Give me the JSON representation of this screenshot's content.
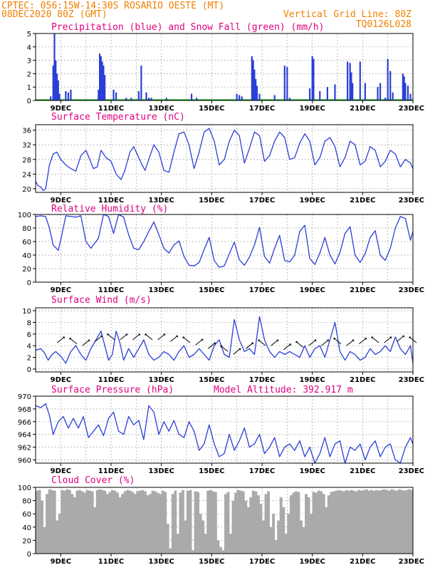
{
  "header": {
    "line1": "CPTEC:  056:15W-14:30S  ROSARIO OESTE (MT)",
    "line2_left": "08DEC2020 80Z (GMT)",
    "line2_right": "Vertical Grid Line: 80Z",
    "line3_right": "TQ0126L028"
  },
  "colors": {
    "header": "#f08000",
    "title": "#e0007f",
    "line": "#2a3fd6",
    "snow": "#00a000",
    "cloud": "#aaaaaa",
    "grid": "#888888"
  },
  "x_axis_labels": [
    "9DEC",
    "11DEC",
    "13DEC",
    "15DEC",
    "17DEC",
    "19DEC",
    "21DEC",
    "23DEC"
  ],
  "chart_data": [
    {
      "type": "bar",
      "title": "Precipitation (blue) and Snow Fall (green) (mm/h)",
      "ylim": [
        0,
        5
      ],
      "yticks": [
        0,
        1,
        2,
        3,
        4,
        5
      ],
      "x_days": [
        8.6,
        8.7,
        8.75,
        8.8,
        8.85,
        8.9,
        8.95,
        9.2,
        9.3,
        9.4,
        10.5,
        10.55,
        10.6,
        10.65,
        10.7,
        10.75,
        11.1,
        11.2,
        11.6,
        11.8,
        12.1,
        12.2,
        12.4,
        12.5,
        12.6,
        13.2,
        14.2,
        14.4,
        16.0,
        16.1,
        16.2,
        16.6,
        16.65,
        16.7,
        16.75,
        16.8,
        16.9,
        17.5,
        17.9,
        18.0,
        18.1,
        18.9,
        19.0,
        19.05,
        19.3,
        19.6,
        19.9,
        20.4,
        20.5,
        20.55,
        20.6,
        20.9,
        21.1,
        21.6,
        21.7,
        21.9,
        22.0,
        22.1,
        22.2,
        22.6,
        22.65,
        22.7,
        22.8,
        22.9
      ],
      "values": [
        0.3,
        2.6,
        5.0,
        3.0,
        2.0,
        1.5,
        0.5,
        0.7,
        0.6,
        0.8,
        0.8,
        3.5,
        3.3,
        2.9,
        2.6,
        1.9,
        0.8,
        0.6,
        0.2,
        0.2,
        0.7,
        2.6,
        0.6,
        0.2,
        0.2,
        0.2,
        0.5,
        0.2,
        0.5,
        0.4,
        0.3,
        3.3,
        3.0,
        2.3,
        1.6,
        1.1,
        0.5,
        0.4,
        2.6,
        2.5,
        0.2,
        0.9,
        3.3,
        3.1,
        0.7,
        1.0,
        1.2,
        2.9,
        2.8,
        2.1,
        1.3,
        2.9,
        1.3,
        1.0,
        1.3,
        0.2,
        3.1,
        2.2,
        0.6,
        2.0,
        1.8,
        1.3,
        1.1,
        0.5
      ]
    },
    {
      "type": "line",
      "title": "Surface Temperature (nC)",
      "ylim": [
        19,
        37.5
      ],
      "yticks": [
        20,
        24,
        28,
        32,
        36
      ],
      "x": [
        8.0,
        8.1,
        8.2,
        8.3,
        8.4,
        8.55,
        8.7,
        8.85,
        9.0,
        9.2,
        9.4,
        9.6,
        9.8,
        10.0,
        10.15,
        10.3,
        10.45,
        10.6,
        10.8,
        11.0,
        11.2,
        11.4,
        11.55,
        11.75,
        11.9,
        12.0,
        12.2,
        12.35,
        12.5,
        12.7,
        12.9,
        13.1,
        13.3,
        13.5,
        13.7,
        13.9,
        14.1,
        14.3,
        14.5,
        14.7,
        14.9,
        15.1,
        15.3,
        15.5,
        15.7,
        15.9,
        16.1,
        16.3,
        16.5,
        16.7,
        16.9,
        17.1,
        17.3,
        17.5,
        17.7,
        17.9,
        18.1,
        18.3,
        18.5,
        18.7,
        18.9,
        19.1,
        19.3,
        19.5,
        19.7,
        19.9,
        20.1,
        20.3,
        20.5,
        20.7,
        20.9,
        21.1,
        21.3,
        21.5,
        21.7,
        21.9,
        22.1,
        22.3,
        22.5,
        22.7,
        22.9,
        23.0
      ],
      "values": [
        22.0,
        20.8,
        20.5,
        19.5,
        20.0,
        26.5,
        29.5,
        30.0,
        28.0,
        26.5,
        25.5,
        24.8,
        29.0,
        30.5,
        28.0,
        25.5,
        26.0,
        30.5,
        28.5,
        27.5,
        24.0,
        22.5,
        25.0,
        30.0,
        31.5,
        30.0,
        27.0,
        25.0,
        28.0,
        32.0,
        30.0,
        25.0,
        24.5,
        30.0,
        35.0,
        35.5,
        32.0,
        25.5,
        30.0,
        35.5,
        36.5,
        33.0,
        26.5,
        28.0,
        33.0,
        36.0,
        34.5,
        27.0,
        31.0,
        35.5,
        34.5,
        27.5,
        29.0,
        33.0,
        35.5,
        34.0,
        28.0,
        28.5,
        32.5,
        35.0,
        33.0,
        26.5,
        28.5,
        33.0,
        34.0,
        31.5,
        26.0,
        28.5,
        33.0,
        32.0,
        26.5,
        27.5,
        31.5,
        30.5,
        26.0,
        27.5,
        30.5,
        29.5,
        26.0,
        28.0,
        27.0,
        25.5
      ]
    },
    {
      "type": "line",
      "title": "Relative Humidity (%)",
      "ylim": [
        0,
        100
      ],
      "yticks": [
        0,
        20,
        40,
        60,
        80,
        100
      ],
      "x": [
        8.0,
        8.2,
        8.4,
        8.55,
        8.7,
        8.9,
        9.0,
        9.2,
        9.4,
        9.6,
        9.8,
        10.0,
        10.2,
        10.5,
        10.7,
        10.9,
        11.1,
        11.3,
        11.5,
        11.7,
        11.9,
        12.1,
        12.3,
        12.5,
        12.7,
        12.9,
        13.1,
        13.3,
        13.5,
        13.7,
        13.9,
        14.1,
        14.3,
        14.5,
        14.7,
        14.9,
        15.1,
        15.3,
        15.5,
        15.7,
        15.9,
        16.1,
        16.3,
        16.5,
        16.7,
        16.9,
        17.1,
        17.3,
        17.5,
        17.7,
        17.9,
        18.1,
        18.3,
        18.5,
        18.7,
        18.9,
        19.1,
        19.3,
        19.5,
        19.7,
        19.9,
        20.1,
        20.3,
        20.5,
        20.7,
        20.9,
        21.1,
        21.3,
        21.5,
        21.7,
        21.9,
        22.1,
        22.3,
        22.5,
        22.7,
        22.9,
        23.0
      ],
      "values": [
        97,
        98,
        97,
        80,
        55,
        47,
        62,
        98,
        97,
        96,
        98,
        60,
        50,
        65,
        100,
        97,
        72,
        100,
        96,
        70,
        50,
        48,
        60,
        75,
        89,
        70,
        50,
        43,
        55,
        61,
        38,
        25,
        24,
        29,
        48,
        66,
        32,
        22,
        24,
        42,
        59,
        33,
        25,
        37,
        55,
        81,
        38,
        28,
        50,
        69,
        32,
        30,
        40,
        75,
        84,
        35,
        26,
        43,
        66,
        40,
        27,
        44,
        72,
        82,
        40,
        29,
        42,
        66,
        76,
        40,
        32,
        50,
        80,
        97,
        94,
        62,
        75
      ]
    },
    {
      "type": "line",
      "title": "Surface Wind (m/s)",
      "ylim": [
        -0.5,
        10.5
      ],
      "yticks": [
        0,
        2,
        4,
        6,
        8,
        10
      ],
      "x": [
        8.0,
        8.2,
        8.35,
        8.5,
        8.65,
        8.8,
        9.0,
        9.2,
        9.4,
        9.6,
        9.8,
        10.0,
        10.2,
        10.4,
        10.6,
        10.75,
        10.9,
        11.05,
        11.2,
        11.35,
        11.5,
        11.7,
        11.9,
        12.1,
        12.3,
        12.5,
        12.7,
        12.9,
        13.1,
        13.3,
        13.5,
        13.7,
        13.9,
        14.1,
        14.3,
        14.5,
        14.7,
        14.9,
        15.1,
        15.3,
        15.5,
        15.7,
        15.9,
        16.1,
        16.3,
        16.5,
        16.7,
        16.9,
        17.1,
        17.3,
        17.5,
        17.7,
        17.9,
        18.1,
        18.3,
        18.5,
        18.7,
        18.9,
        19.1,
        19.3,
        19.5,
        19.7,
        19.9,
        20.1,
        20.3,
        20.5,
        20.7,
        20.9,
        21.1,
        21.3,
        21.5,
        21.7,
        21.9,
        22.1,
        22.3,
        22.5,
        22.7,
        22.9,
        23.0
      ],
      "values": [
        3.2,
        3.5,
        2.8,
        1.5,
        2.5,
        3.0,
        2.2,
        1.0,
        3.0,
        4.0,
        2.5,
        1.5,
        3.5,
        5.0,
        6.5,
        4.0,
        1.5,
        2.5,
        6.5,
        4.5,
        1.5,
        3.5,
        2.0,
        3.5,
        5.0,
        2.5,
        1.5,
        2.0,
        3.0,
        2.5,
        1.5,
        3.0,
        4.0,
        2.0,
        2.5,
        3.5,
        2.5,
        1.5,
        4.0,
        5.0,
        2.5,
        2.0,
        8.5,
        5.0,
        3.0,
        3.5,
        2.5,
        9.0,
        5.0,
        3.0,
        2.0,
        3.0,
        2.5,
        3.0,
        2.5,
        2.0,
        4.0,
        2.0,
        3.5,
        4.0,
        2.0,
        5.0,
        8.0,
        3.0,
        1.5,
        3.0,
        2.5,
        1.5,
        2.0,
        3.5,
        2.5,
        3.0,
        4.0,
        3.0,
        5.5,
        3.5,
        2.5,
        4.0,
        1.0
      ]
    },
    {
      "type": "line",
      "title": "Surface Pressure (hPa)",
      "annotation": "Model Altitude: 392.917 m",
      "ylim": [
        959.5,
        970
      ],
      "yticks": [
        960,
        962,
        964,
        966,
        968,
        970
      ],
      "x": [
        8.0,
        8.2,
        8.4,
        8.55,
        8.7,
        8.9,
        9.1,
        9.3,
        9.5,
        9.7,
        9.9,
        10.1,
        10.3,
        10.5,
        10.7,
        10.9,
        11.1,
        11.3,
        11.5,
        11.7,
        11.9,
        12.1,
        12.3,
        12.5,
        12.7,
        12.9,
        13.1,
        13.3,
        13.5,
        13.7,
        13.9,
        14.1,
        14.3,
        14.5,
        14.7,
        14.9,
        15.1,
        15.3,
        15.5,
        15.7,
        15.9,
        16.1,
        16.3,
        16.5,
        16.7,
        16.9,
        17.1,
        17.3,
        17.5,
        17.7,
        17.9,
        18.1,
        18.3,
        18.5,
        18.7,
        18.9,
        19.1,
        19.3,
        19.5,
        19.7,
        19.9,
        20.1,
        20.3,
        20.5,
        20.7,
        20.9,
        21.1,
        21.3,
        21.5,
        21.7,
        21.9,
        22.1,
        22.3,
        22.5,
        22.7,
        22.9,
        23.0
      ],
      "values": [
        968.5,
        968.2,
        968.8,
        967.0,
        964.0,
        966.0,
        966.8,
        965.0,
        966.5,
        965.0,
        966.8,
        963.5,
        964.5,
        965.5,
        963.8,
        966.5,
        967.5,
        964.5,
        964.0,
        966.8,
        965.5,
        966.2,
        963.2,
        968.5,
        967.5,
        964.0,
        966.0,
        964.5,
        966.2,
        964.0,
        963.5,
        966.0,
        964.5,
        961.5,
        962.5,
        965.5,
        962.5,
        960.5,
        961.0,
        964.0,
        961.5,
        963.0,
        965.0,
        962.0,
        962.5,
        964.0,
        961.0,
        962.0,
        963.5,
        960.5,
        962.0,
        962.5,
        961.5,
        963.0,
        960.5,
        962.0,
        959.5,
        961.0,
        963.5,
        960.5,
        962.5,
        963.0,
        959.5,
        962.0,
        961.5,
        962.5,
        960.0,
        962.0,
        963.0,
        960.5,
        962.0,
        962.5,
        960.0,
        959.5,
        962.0,
        963.5,
        962.5
      ]
    },
    {
      "type": "bar",
      "title": "Cloud Cover (%)",
      "ylim": [
        0,
        100
      ],
      "yticks": [
        0,
        20,
        40,
        60,
        80,
        100
      ],
      "x_days": [
        8.0,
        8.1,
        8.2,
        8.3,
        8.4,
        8.5,
        8.6,
        8.7,
        8.8,
        8.9,
        9.0,
        9.1,
        9.2,
        9.3,
        9.4,
        9.5,
        9.6,
        9.7,
        9.8,
        9.9,
        10.0,
        10.1,
        10.2,
        10.3,
        10.4,
        10.5,
        10.6,
        10.7,
        10.8,
        10.9,
        11.0,
        11.1,
        11.2,
        11.3,
        11.4,
        11.5,
        11.6,
        11.7,
        11.8,
        11.9,
        12.0,
        12.1,
        12.2,
        12.3,
        12.4,
        12.5,
        12.6,
        12.7,
        12.8,
        12.9,
        13.0,
        13.1,
        13.2,
        13.3,
        13.4,
        13.5,
        13.6,
        13.7,
        13.8,
        13.9,
        14.0,
        14.1,
        14.2,
        14.3,
        14.4,
        14.5,
        14.6,
        14.7,
        14.8,
        14.9,
        15.0,
        15.1,
        15.2,
        15.3,
        15.4,
        15.5,
        15.6,
        15.7,
        15.8,
        15.9,
        16.0,
        16.1,
        16.2,
        16.3,
        16.4,
        16.5,
        16.6,
        16.7,
        16.8,
        16.9,
        17.0,
        17.1,
        17.2,
        17.3,
        17.4,
        17.5,
        17.6,
        17.7,
        17.8,
        17.9,
        18.0,
        18.1,
        18.2,
        18.3,
        18.4,
        18.5,
        18.6,
        18.7,
        18.8,
        18.9,
        19.0,
        19.1,
        19.2,
        19.3,
        19.4,
        19.5,
        19.6,
        19.7,
        19.8,
        19.9,
        20.0,
        20.1,
        20.2,
        20.3,
        20.4,
        20.5,
        20.6,
        20.7,
        20.8,
        20.9,
        21.0,
        21.1,
        21.2,
        21.3,
        21.4,
        21.5,
        21.6,
        21.7,
        21.8,
        21.9,
        22.0,
        22.1,
        22.2,
        22.3,
        22.4,
        22.5,
        22.6,
        22.7,
        22.8,
        22.9
      ],
      "values": [
        95,
        96,
        80,
        40,
        90,
        97,
        96,
        95,
        50,
        60,
        96,
        95,
        97,
        96,
        90,
        85,
        95,
        96,
        94,
        92,
        96,
        95,
        94,
        70,
        96,
        97,
        96,
        95,
        90,
        93,
        96,
        95,
        92,
        85,
        90,
        94,
        96,
        95,
        93,
        90,
        94,
        95,
        96,
        94,
        88,
        90,
        95,
        94,
        92,
        90,
        95,
        93,
        45,
        8,
        90,
        95,
        30,
        92,
        96,
        50,
        95,
        96,
        5,
        94,
        93,
        60,
        50,
        30,
        95,
        96,
        94,
        93,
        20,
        10,
        5,
        90,
        93,
        30,
        80,
        92,
        96,
        95,
        94,
        80,
        70,
        85,
        95,
        94,
        88,
        75,
        50,
        90,
        94,
        40,
        60,
        20,
        50,
        85,
        70,
        30,
        60,
        88,
        92,
        94,
        93,
        50,
        40,
        90,
        85,
        60,
        93,
        92,
        95,
        94,
        90,
        70,
        88,
        93,
        94,
        95,
        96,
        95,
        94,
        96,
        95,
        96,
        95,
        94,
        96,
        95,
        96,
        97,
        95,
        96,
        95,
        96,
        95,
        96,
        97,
        96,
        95,
        97,
        96,
        95,
        97,
        96,
        95,
        96,
        97,
        96
      ]
    }
  ]
}
